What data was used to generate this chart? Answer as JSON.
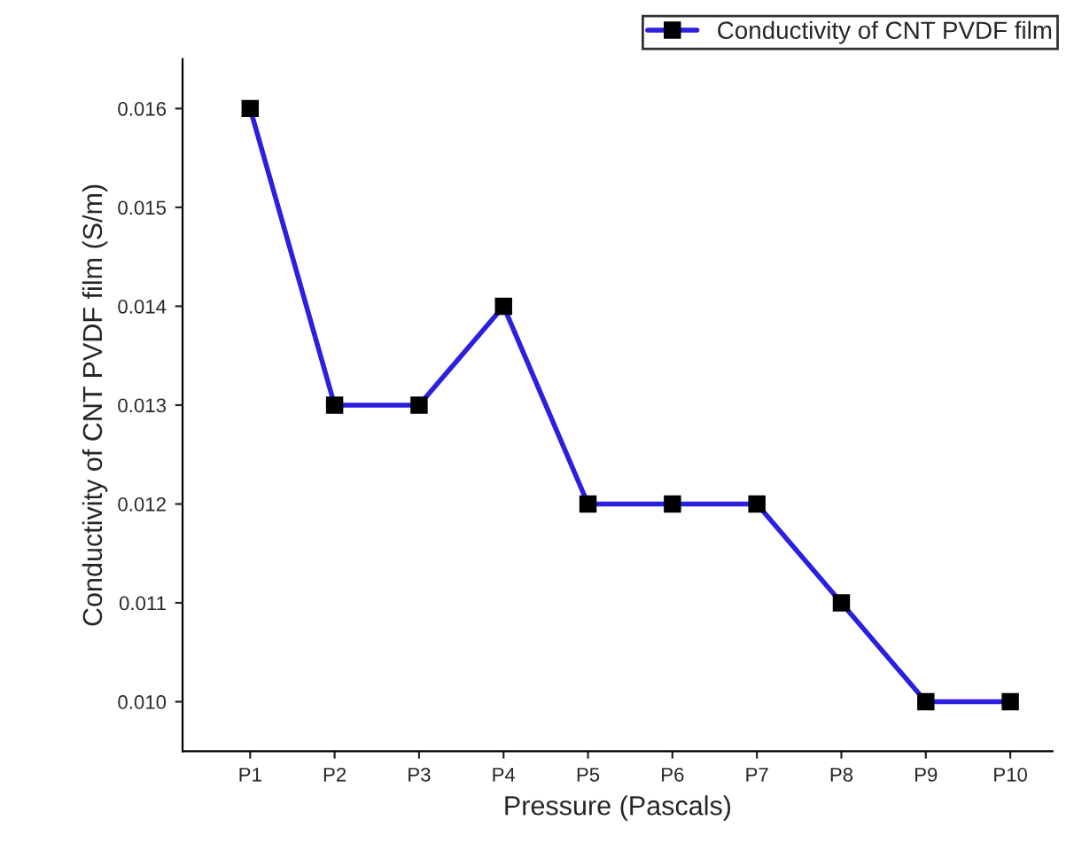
{
  "chart_data": {
    "type": "line",
    "xlabel": "Pressure (Pascals)",
    "ylabel": "Conductivity of CNT PVDF film (S/m)",
    "categories": [
      "P1",
      "P2",
      "P3",
      "P4",
      "P5",
      "P6",
      "P7",
      "P8",
      "P9",
      "P10"
    ],
    "series": [
      {
        "name": "Conductivity of CNT PVDF film",
        "color": "#2b1fe0",
        "values": [
          0.016,
          0.013,
          0.013,
          0.014,
          0.012,
          0.012,
          0.012,
          0.011,
          0.01,
          0.01
        ]
      }
    ],
    "ylim": [
      0.0095,
      0.0165
    ],
    "yticks": [
      {
        "value": 0.01,
        "label": "0.010"
      },
      {
        "value": 0.011,
        "label": "0.011"
      },
      {
        "value": 0.012,
        "label": "0.012"
      },
      {
        "value": 0.013,
        "label": "0.013"
      },
      {
        "value": 0.014,
        "label": "0.014"
      },
      {
        "value": 0.015,
        "label": "0.015"
      },
      {
        "value": 0.016,
        "label": "0.016"
      }
    ],
    "marker": "square",
    "line_style": "solid",
    "legend": "top right",
    "grid": false
  }
}
